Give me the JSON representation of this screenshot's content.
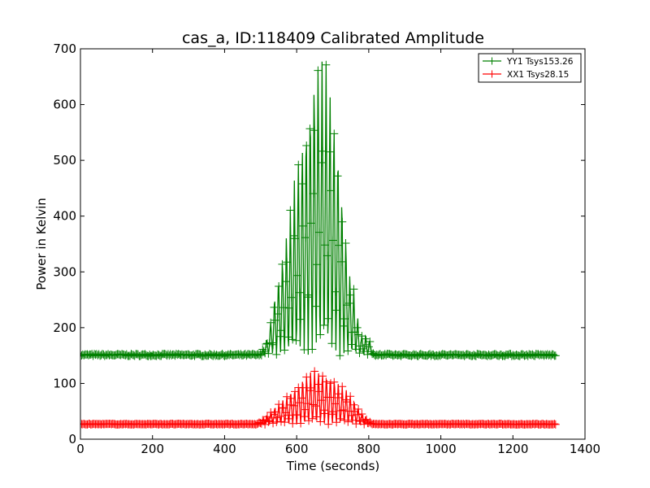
{
  "chart_data": {
    "type": "line",
    "title": "cas_a, ID:118409 Calibrated Amplitude",
    "xlabel": "Time (seconds)",
    "ylabel": "Power in Kelvin",
    "xlim": [
      0,
      1400
    ],
    "ylim": [
      0,
      700
    ],
    "xticks": [
      0,
      200,
      400,
      600,
      800,
      1000,
      1200,
      1400
    ],
    "yticks": [
      0,
      100,
      200,
      300,
      400,
      500,
      600,
      700
    ],
    "xtick_labels": [
      "0",
      "200",
      "400",
      "600",
      "800",
      "1000",
      "1200",
      "1400"
    ],
    "ytick_labels": [
      "0",
      "100",
      "200",
      "300",
      "400",
      "500",
      "600",
      "700"
    ],
    "grid": false,
    "legend_position": "top-right",
    "marker": "+",
    "series": [
      {
        "name": "YY1 Tsys153.26",
        "color": "#008000",
        "baseline": 151,
        "baseline_noise": 4,
        "x_range": [
          0,
          1320
        ],
        "sample_step": 1.6,
        "scan_period": 11,
        "envelope": [
          [
            500,
            151
          ],
          [
            520,
            185
          ],
          [
            540,
            265
          ],
          [
            560,
            335
          ],
          [
            580,
            405
          ],
          [
            600,
            500
          ],
          [
            620,
            570
          ],
          [
            640,
            640
          ],
          [
            655,
            700
          ],
          [
            670,
            690
          ],
          [
            685,
            680
          ],
          [
            700,
            615
          ],
          [
            715,
            540
          ],
          [
            730,
            420
          ],
          [
            745,
            310
          ],
          [
            760,
            265
          ],
          [
            775,
            190
          ],
          [
            800,
            185
          ],
          [
            815,
            151
          ]
        ]
      },
      {
        "name": "XX1 Tsys28.15",
        "color": "#ff0000",
        "baseline": 27,
        "baseline_noise": 1.5,
        "x_range": [
          0,
          1320
        ],
        "sample_step": 1.6,
        "scan_period": 11,
        "envelope": [
          [
            490,
            27
          ],
          [
            520,
            45
          ],
          [
            560,
            70
          ],
          [
            600,
            100
          ],
          [
            620,
            115
          ],
          [
            640,
            122
          ],
          [
            660,
            125
          ],
          [
            680,
            122
          ],
          [
            700,
            115
          ],
          [
            720,
            100
          ],
          [
            740,
            88
          ],
          [
            760,
            70
          ],
          [
            790,
            40
          ],
          [
            810,
            27
          ]
        ]
      }
    ]
  }
}
